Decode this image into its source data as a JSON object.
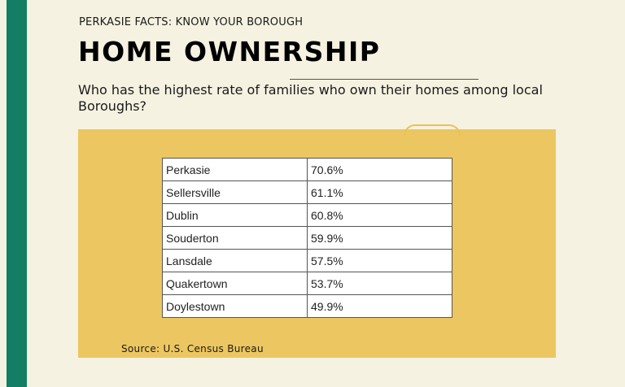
{
  "header": {
    "kicker": "PERKASIE FACTS: KNOW YOUR BOROUGH",
    "title": "HOME OWNERSHIP",
    "question": "Who has the highest rate of families who own their homes among local Boroughs?"
  },
  "table": {
    "rows": [
      {
        "borough": "Perkasie",
        "rate": "70.6%"
      },
      {
        "borough": "Sellersville",
        "rate": "61.1%"
      },
      {
        "borough": "Dublin",
        "rate": "60.8%"
      },
      {
        "borough": "Souderton",
        "rate": "59.9%"
      },
      {
        "borough": "Lansdale",
        "rate": "57.5%"
      },
      {
        "borough": "Quakertown",
        "rate": "53.7%"
      },
      {
        "borough": "Doylestown",
        "rate": "49.9%"
      }
    ]
  },
  "footer": {
    "source": "Source: U.S. Census Bureau"
  },
  "colors": {
    "stripe": "#137e63",
    "background": "#f6f2e1",
    "panel": "#ecc660"
  }
}
